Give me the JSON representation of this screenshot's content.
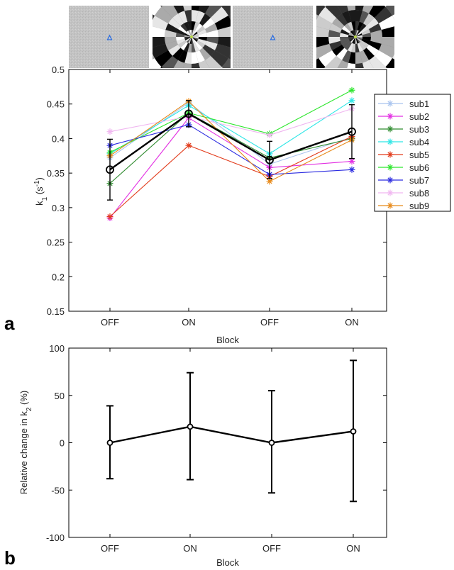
{
  "panel_labels": [
    "a",
    "b"
  ],
  "chart_data": [
    {
      "type": "line",
      "panel": "a",
      "categories": [
        "OFF",
        "ON",
        "OFF",
        "ON"
      ],
      "xlabel": "Block",
      "ylabel": "k",
      "ylabel_sub": "1",
      "ylabel_unit_open": " (s",
      "ylabel_unit_sup": "-1",
      "ylabel_unit_close": ")",
      "ylim": [
        0.15,
        0.5
      ],
      "yticks": [
        0.15,
        0.2,
        0.25,
        0.3,
        0.35,
        0.4,
        0.45,
        0.5
      ],
      "ytick_labels": [
        "0.15",
        "0.2",
        "0.25",
        "0.3",
        "0.35",
        "0.4",
        "0.45",
        "0.5"
      ],
      "grid": false,
      "legend_position": "right",
      "series": [
        {
          "name": "sub1",
          "color": "#a9c4ee",
          "values": [
            0.372,
            0.452,
            0.363,
            0.402
          ]
        },
        {
          "name": "sub2",
          "color": "#e22ee2",
          "values": [
            0.285,
            0.43,
            0.358,
            0.367
          ]
        },
        {
          "name": "sub3",
          "color": "#2f8b2f",
          "values": [
            0.335,
            0.437,
            0.372,
            0.4
          ]
        },
        {
          "name": "sub4",
          "color": "#2ee6e6",
          "values": [
            0.378,
            0.448,
            0.378,
            0.455
          ]
        },
        {
          "name": "sub5",
          "color": "#e23b1b",
          "values": [
            0.287,
            0.39,
            0.345,
            0.403
          ]
        },
        {
          "name": "sub6",
          "color": "#2ee62e",
          "values": [
            0.38,
            0.437,
            0.407,
            0.47
          ]
        },
        {
          "name": "sub7",
          "color": "#2a2ae0",
          "values": [
            0.39,
            0.42,
            0.348,
            0.355
          ]
        },
        {
          "name": "sub8",
          "color": "#f0b6f0",
          "values": [
            0.41,
            0.432,
            0.405,
            0.443
          ]
        },
        {
          "name": "sub9",
          "color": "#e88a1a",
          "values": [
            0.375,
            0.454,
            0.338,
            0.398
          ]
        }
      ],
      "mean": {
        "color": "#000000",
        "values": [
          0.355,
          0.436,
          0.369,
          0.41
        ],
        "err": [
          0.044,
          0.019,
          0.027,
          0.039
        ]
      }
    },
    {
      "type": "line",
      "panel": "b",
      "categories": [
        "OFF",
        "ON",
        "OFF",
        "ON"
      ],
      "xlabel": "Block",
      "ylabel": "Relative change in k",
      "ylabel_sub": "2",
      "ylabel_unit": " (%)",
      "ylim": [
        -100,
        100
      ],
      "yticks": [
        -100,
        -50,
        0,
        50,
        100
      ],
      "ytick_labels": [
        "-100",
        "-50",
        "0",
        "50",
        "100"
      ],
      "grid": false,
      "mean": {
        "color": "#000000",
        "values": [
          0,
          17,
          0,
          12
        ],
        "err_low": [
          38,
          56,
          53,
          74
        ],
        "err_high": [
          39,
          57,
          55,
          75
        ]
      }
    }
  ],
  "stimuli": [
    "fixation-gray",
    "checkerboard",
    "fixation-gray",
    "checkerboard"
  ]
}
